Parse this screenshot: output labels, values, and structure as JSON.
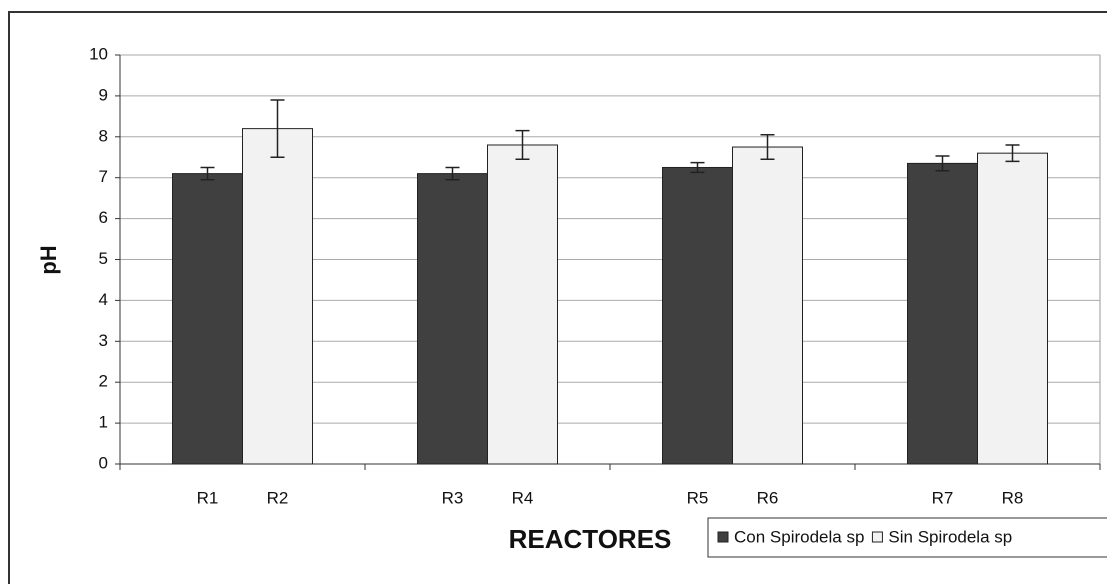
{
  "chart_data": {
    "type": "bar",
    "x_label": "REACTORES",
    "y_label": "pH",
    "series": [
      {
        "name": "Con Spirodela sp",
        "color": "#404040",
        "labels": [
          "R1",
          "R3",
          "R5",
          "R7"
        ],
        "values": [
          7.1,
          7.1,
          7.25,
          7.35
        ],
        "errors": [
          0.15,
          0.15,
          0.12,
          0.18
        ]
      },
      {
        "name": "Sin Spirodela sp",
        "color": "#f2f2f2",
        "labels": [
          "R2",
          "R4",
          "R6",
          "R8"
        ],
        "values": [
          8.2,
          7.8,
          7.75,
          7.6
        ],
        "errors": [
          0.7,
          0.35,
          0.3,
          0.2
        ]
      }
    ],
    "ylim": [
      0,
      10
    ],
    "yticks": [
      0,
      1,
      2,
      3,
      4,
      5,
      6,
      7,
      8,
      9,
      10
    ],
    "grid": true,
    "legend": "bottom-right"
  }
}
